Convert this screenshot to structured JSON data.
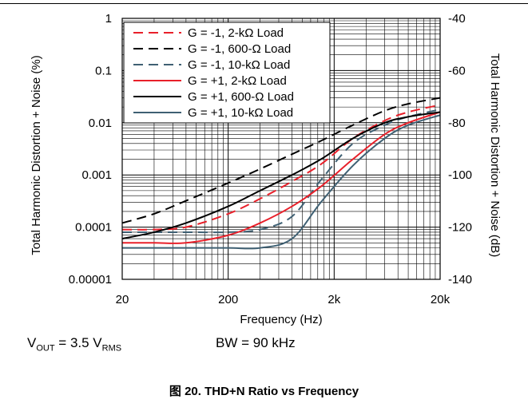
{
  "chart_data": {
    "type": "line",
    "title": "",
    "xlabel": "Frequency (Hz)",
    "ylabel": "Total Harmonic Distortion + Noise (%)",
    "y2label": "Total Harmonic Distortion + Noise (dB)",
    "xscale": "log",
    "yscale": "log",
    "xlim": [
      20,
      20000
    ],
    "ylim": [
      1e-05,
      1
    ],
    "y2lim": [
      -140,
      -40
    ],
    "x_tick_labels": [
      "20",
      "200",
      "2k",
      "20k"
    ],
    "y_tick_labels": [
      "1",
      "0.1",
      "0.01",
      "0.001",
      "0.0001",
      "0.00001"
    ],
    "y2_tick_labels": [
      "-40",
      "-60",
      "-80",
      "-100",
      "-120",
      "-140"
    ],
    "grid": true,
    "legend_position": "top-left",
    "x": [
      20,
      40,
      80,
      200,
      400,
      800,
      1500,
      3000,
      6000,
      10000,
      20000
    ],
    "series": [
      {
        "name": "G = -1, 2-kΩ Load",
        "color": "#e8202a",
        "dash": true,
        "values": [
          9e-05,
          9e-05,
          0.0001,
          0.00018,
          0.00035,
          0.00075,
          0.0016,
          0.005,
          0.011,
          0.016,
          0.022
        ]
      },
      {
        "name": "G = -1, 600-Ω Load",
        "color": "#000000",
        "dash": true,
        "values": [
          0.00012,
          0.00018,
          0.00032,
          0.0007,
          0.0013,
          0.0025,
          0.0045,
          0.009,
          0.017,
          0.023,
          0.03
        ]
      },
      {
        "name": "G = -1, 10-kΩ Load",
        "color": "#3f6073",
        "dash": true,
        "values": [
          8e-05,
          8e-05,
          8e-05,
          8e-05,
          9e-05,
          0.00016,
          0.0008,
          0.004,
          0.009,
          0.013,
          0.018
        ]
      },
      {
        "name": "G = +1, 2-kΩ Load",
        "color": "#e8202a",
        "dash": false,
        "values": [
          5e-05,
          5e-05,
          5e-05,
          7e-05,
          0.00012,
          0.00025,
          0.0006,
          0.002,
          0.006,
          0.01,
          0.016
        ]
      },
      {
        "name": "G = +1, 600-Ω Load",
        "color": "#000000",
        "dash": false,
        "values": [
          6e-05,
          8e-05,
          0.00012,
          0.00025,
          0.0005,
          0.001,
          0.002,
          0.005,
          0.01,
          0.013,
          0.016
        ]
      },
      {
        "name": "G = +1, 10-kΩ Load",
        "color": "#3f6073",
        "dash": false,
        "values": [
          4e-05,
          4e-05,
          4e-05,
          4e-05,
          4e-05,
          6e-05,
          0.0003,
          0.0015,
          0.005,
          0.009,
          0.014
        ]
      }
    ]
  },
  "notes": {
    "vout_prefix": "V",
    "vout_sub": "OUT",
    "vout_mid": " = 3.5 V",
    "vout_sub2": "RMS",
    "bandwidth": "BW = 90 kHz"
  },
  "caption": "图 20. THD+N Ratio vs Frequency"
}
